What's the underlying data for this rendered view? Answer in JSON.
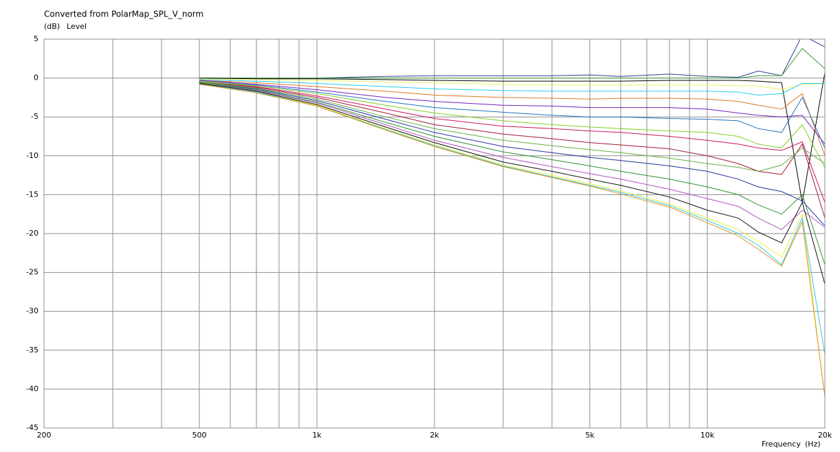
{
  "chart_data": {
    "type": "line",
    "title": "Converted from PolarMap_SPL_V_norm",
    "yunit": "(dB)",
    "ylabel": "Level",
    "xlabel": "Frequency",
    "xunit": "(Hz)",
    "xscale": "log",
    "grid": true,
    "xlim": [
      200,
      20000
    ],
    "xticks": [
      200,
      500,
      {
        "value": 1000,
        "label": "1k"
      },
      {
        "value": 2000,
        "label": "2k"
      },
      {
        "value": 5000,
        "label": "5k"
      },
      {
        "value": 10000,
        "label": "10k"
      },
      {
        "value": 20000,
        "label": "20k"
      }
    ],
    "xminor_ticks": [
      300,
      400,
      600,
      700,
      800,
      900,
      3000,
      4000,
      6000,
      7000,
      8000,
      9000
    ],
    "ylim": [
      -45,
      5
    ],
    "yticks": [
      5,
      0,
      -5,
      -10,
      -15,
      -20,
      -25,
      -30,
      -35,
      -40,
      -45
    ],
    "x": [
      500,
      700,
      1000,
      1500,
      2000,
      3000,
      4000,
      5000,
      6000,
      8000,
      10000,
      12000,
      13500,
      15500,
      17500,
      20000
    ],
    "series": [
      {
        "color": "#2a3c8c",
        "values": [
          0,
          0,
          0,
          0.2,
          0.3,
          0.3,
          0.3,
          0.4,
          0.2,
          0.5,
          0.2,
          0.1,
          0.9,
          0.3,
          5.5,
          4
        ]
      },
      {
        "color": "#3a9a3a",
        "values": [
          0,
          0,
          0,
          0,
          0,
          0,
          0,
          0,
          0,
          0,
          0,
          0,
          0.3,
          0.3,
          3.8,
          1.2
        ]
      },
      {
        "color": "#000000",
        "values": [
          0,
          -0.1,
          -0.1,
          -0.2,
          -0.3,
          -0.4,
          -0.4,
          -0.4,
          -0.4,
          -0.3,
          -0.3,
          -0.3,
          -0.4,
          -0.6,
          -16,
          0.7
        ]
      },
      {
        "color": "#f0f060",
        "values": [
          -0.1,
          -0.2,
          -0.3,
          -0.5,
          -0.6,
          -0.8,
          -0.9,
          -0.9,
          -0.9,
          -0.9,
          -0.9,
          -1,
          -1,
          -1.5,
          -0.8,
          -0.7
        ]
      },
      {
        "color": "#20d0e8",
        "values": [
          -0.2,
          -0.4,
          -0.7,
          -1.1,
          -1.4,
          -1.6,
          -1.7,
          -1.7,
          -1.7,
          -1.7,
          -1.7,
          -1.8,
          -2.2,
          -2,
          -0.7,
          -0.7
        ]
      },
      {
        "color": "#e07820",
        "values": [
          -0.3,
          -0.6,
          -1.1,
          -1.7,
          -2.2,
          -2.5,
          -2.6,
          -2.7,
          -2.6,
          -2.6,
          -2.7,
          -3,
          -3.5,
          -4,
          -2,
          -10
        ]
      },
      {
        "color": "#7020c0",
        "values": [
          -0.3,
          -0.8,
          -1.5,
          -2.5,
          -3,
          -3.5,
          -3.6,
          -3.8,
          -3.8,
          -3.8,
          -4,
          -4.5,
          -4.8,
          -5,
          -4.8,
          -8.5
        ]
      },
      {
        "color": "#2070c0",
        "values": [
          -0.4,
          -0.9,
          -1.8,
          -3,
          -3.8,
          -4.4,
          -4.8,
          -5,
          -5,
          -5.2,
          -5.3,
          -5.5,
          -6.5,
          -7,
          -2.5,
          -9
        ]
      },
      {
        "color": "#80d020",
        "values": [
          -0.4,
          -1,
          -2,
          -3.5,
          -4.5,
          -5.5,
          -6,
          -6.3,
          -6.5,
          -6.8,
          -7,
          -7.5,
          -8.5,
          -9,
          -6,
          -11.5
        ]
      },
      {
        "color": "#d01060",
        "values": [
          -0.5,
          -1.1,
          -2.3,
          -4,
          -5.2,
          -6.2,
          -6.5,
          -6.8,
          -7,
          -7.5,
          -8,
          -8.5,
          -9,
          -9.3,
          -8.2,
          -16
        ]
      },
      {
        "color": "#a01830",
        "values": [
          -0.5,
          -1.2,
          -2.5,
          -4.5,
          -6,
          -7.2,
          -7.8,
          -8.3,
          -8.6,
          -9.1,
          -10,
          -11,
          -12,
          -12.4,
          -8.5,
          -18
        ]
      },
      {
        "color": "#60b040",
        "values": [
          -0.5,
          -1.3,
          -2.7,
          -5,
          -6.5,
          -8,
          -8.7,
          -9.2,
          -9.6,
          -10.3,
          -11,
          -11.5,
          -12,
          -11.2,
          -9,
          -11
        ]
      },
      {
        "color": "#2030a0",
        "values": [
          -0.6,
          -1.4,
          -2.9,
          -5.3,
          -7,
          -8.8,
          -9.6,
          -10.2,
          -10.6,
          -11.3,
          -12,
          -13,
          -14,
          -14.6,
          -15.8,
          -19
        ]
      },
      {
        "color": "#309030",
        "values": [
          -0.6,
          -1.5,
          -3.1,
          -5.7,
          -7.5,
          -9.5,
          -10.5,
          -11.3,
          -12,
          -13,
          -14,
          -15,
          -16.3,
          -17.5,
          -15,
          -24
        ]
      },
      {
        "color": "#b050c0",
        "values": [
          -0.7,
          -1.6,
          -3.2,
          -6,
          -8,
          -10.2,
          -11.4,
          -12.3,
          -13,
          -14.3,
          -15.5,
          -16.5,
          -18,
          -19.5,
          -17,
          -19.2
        ]
      },
      {
        "color": "#101010",
        "values": [
          -0.7,
          -1.7,
          -3.4,
          -6.3,
          -8.3,
          -10.8,
          -12,
          -13,
          -13.8,
          -15.3,
          -17,
          -18,
          -19.8,
          -21.2,
          -16,
          -26.5
        ]
      },
      {
        "color": "#f0f040",
        "values": [
          -0.8,
          -1.8,
          -3.5,
          -6.5,
          -8.6,
          -11.2,
          -12.5,
          -13.6,
          -14.5,
          -16.2,
          -18,
          -19.5,
          -21,
          -23,
          -17.5,
          -41
        ]
      },
      {
        "color": "#30c8e0",
        "values": [
          -0.8,
          -1.8,
          -3.6,
          -6.6,
          -8.7,
          -11.3,
          -12.7,
          -13.8,
          -14.7,
          -16.4,
          -18.3,
          -20,
          -21.5,
          -24,
          -18,
          -35.5
        ]
      },
      {
        "color": "#e09020",
        "values": [
          -0.8,
          -1.9,
          -3.6,
          -6.7,
          -8.8,
          -11.4,
          -12.8,
          -13.9,
          -14.9,
          -16.6,
          -18.6,
          -20.3,
          -22,
          -24.2,
          -18.5,
          -41
        ]
      }
    ]
  }
}
